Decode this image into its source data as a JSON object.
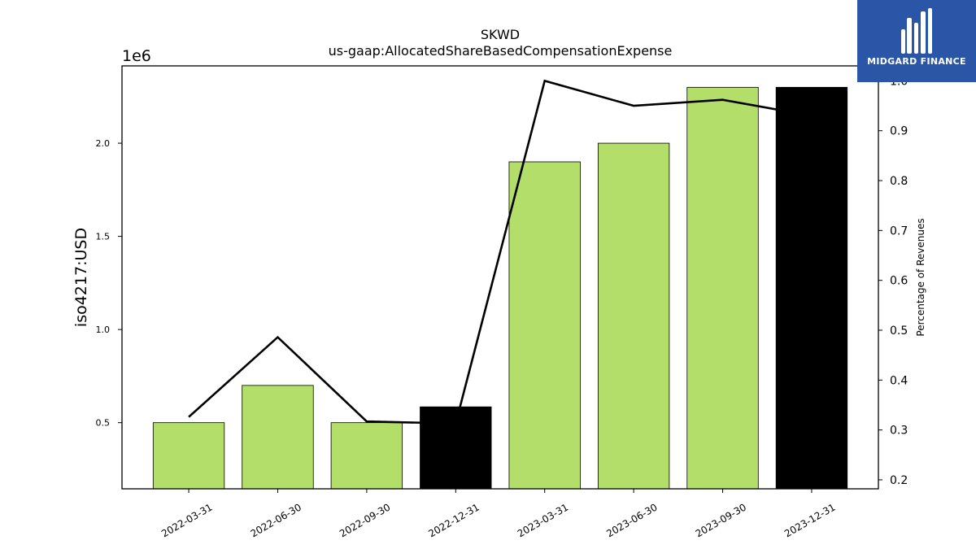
{
  "chart_data": {
    "type": "bar",
    "title": "SKWD",
    "subtitle": "us-gaap:AllocatedShareBasedCompensationExpense",
    "ylabel": "iso4217:USD",
    "y_offset_label": "1e6",
    "y2label": "Percentage of Revenues",
    "categories": [
      "2022-03-31",
      "2022-06-30",
      "2022-09-30",
      "2022-12-31",
      "2023-03-31",
      "2023-06-30",
      "2023-09-30",
      "2023-12-31"
    ],
    "values": [
      500000,
      700000,
      500000,
      585000,
      1900000,
      2000000,
      2300000,
      2300000
    ],
    "bar_colors": [
      "#b3de69",
      "#b3de69",
      "#b3de69",
      "#000000",
      "#b3de69",
      "#b3de69",
      "#b3de69",
      "#000000"
    ],
    "ylim": [
      145000,
      2415000
    ],
    "yticks": [
      500000,
      1000000,
      1500000,
      2000000
    ],
    "ytick_labels": [
      "0.5",
      "1.0",
      "1.5",
      "2.0"
    ],
    "line": {
      "axis": "right",
      "values": [
        0.326,
        0.486,
        0.317,
        0.313,
        1.0,
        0.95,
        0.962,
        0.93
      ],
      "color": "#000000"
    },
    "y2lim": [
      0.182,
      1.03
    ],
    "y2ticks": [
      0.2,
      0.3,
      0.4,
      0.5,
      0.6,
      0.7,
      0.8,
      0.9,
      1.0
    ],
    "y2tick_labels": [
      "0.2",
      "0.3",
      "0.4",
      "0.5",
      "0.6",
      "0.7",
      "0.8",
      "0.9",
      "1.0"
    ],
    "grid": false,
    "legend": "none"
  },
  "logo": {
    "text": "MIDGARD FINANCE"
  }
}
